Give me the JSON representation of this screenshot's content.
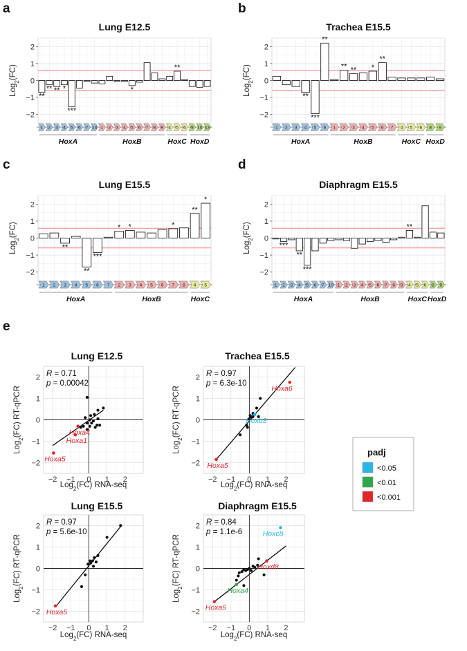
{
  "colors": {
    "HoxA": "#9ec1e0",
    "HoxB": "#f0b0b0",
    "HoxC": "#e8eb9c",
    "HoxD": "#b4d878",
    "p005": "#29b6e6",
    "p001": "#2fa84a",
    "p0001": "#e1262b",
    "threshold": "#f08080"
  },
  "bar_panels": [
    {
      "letter": "a",
      "title": "Lung E12.5",
      "ylabel": "Log2(FC)",
      "chart_data": {
        "type": "bar",
        "ylim": [
          -2.5,
          2.5
        ],
        "yticks": [
          -2,
          -1,
          0,
          1,
          2
        ],
        "threshold": 0.58,
        "categories": [
          "1",
          "2",
          "3",
          "4",
          "5",
          "6",
          "7",
          "13",
          "1",
          "2",
          "3",
          "4",
          "5",
          "6",
          "7",
          "8",
          "9",
          "4",
          "5",
          "6",
          "9",
          "10",
          "13"
        ],
        "families": [
          "HoxA",
          "HoxA",
          "HoxA",
          "HoxA",
          "HoxA",
          "HoxA",
          "HoxA",
          "HoxA",
          "HoxB",
          "HoxB",
          "HoxB",
          "HoxB",
          "HoxB",
          "HoxB",
          "HoxB",
          "HoxB",
          "HoxB",
          "HoxC",
          "HoxC",
          "HoxC",
          "HoxD",
          "HoxD",
          "HoxD"
        ],
        "values": [
          -0.7,
          -0.25,
          -0.35,
          -0.25,
          -1.55,
          -0.45,
          -0.05,
          -0.15,
          -0.2,
          0.25,
          -0.05,
          -0.05,
          -0.3,
          -0.1,
          1.05,
          0.45,
          0.1,
          0.25,
          0.55,
          0.05,
          -0.35,
          -0.4,
          -0.35
        ],
        "stars": [
          "**",
          "**",
          "**",
          "*",
          "***",
          "",
          "",
          "",
          "",
          "",
          "",
          "",
          "*",
          "",
          "",
          "",
          "",
          "",
          "**",
          "",
          "",
          "",
          ""
        ],
        "groups": [
          "HoxA",
          "HoxB",
          "HoxC",
          "HoxD"
        ]
      }
    },
    {
      "letter": "b",
      "title": "Trachea E15.5",
      "ylabel": "Log2(FC)",
      "chart_data": {
        "type": "bar",
        "ylim": [
          -2.5,
          2.5
        ],
        "yticks": [
          -2,
          -1,
          0,
          1,
          2
        ],
        "threshold": 0.58,
        "categories": [
          "1",
          "2",
          "3",
          "4",
          "5",
          "6",
          "1",
          "2",
          "3",
          "4",
          "5",
          "6",
          "7",
          "4",
          "5",
          "6",
          "8",
          "9"
        ],
        "families": [
          "HoxA",
          "HoxA",
          "HoxA",
          "HoxA",
          "HoxA",
          "HoxA",
          "HoxB",
          "HoxB",
          "HoxB",
          "HoxB",
          "HoxB",
          "HoxB",
          "HoxB",
          "HoxC",
          "HoxC",
          "HoxC",
          "HoxD",
          "HoxD"
        ],
        "values": [
          0.25,
          -0.25,
          -0.35,
          -0.7,
          -1.95,
          2.2,
          0.05,
          0.6,
          0.4,
          0.45,
          0.55,
          1.05,
          0.2,
          0.15,
          0.15,
          0.15,
          0.2,
          0.1
        ],
        "stars": [
          "",
          "",
          "",
          "**",
          "***",
          "**",
          "",
          "**",
          "**",
          "",
          "*",
          "**",
          "",
          "",
          "",
          "",
          "",
          ""
        ],
        "groups": [
          "HoxA",
          "HoxB",
          "HoxC",
          "HoxD"
        ]
      }
    },
    {
      "letter": "c",
      "title": "Lung E15.5",
      "ylabel": "Log2(FC)",
      "chart_data": {
        "type": "bar",
        "ylim": [
          -2.5,
          2.5
        ],
        "yticks": [
          -2,
          -1,
          0,
          1,
          2
        ],
        "threshold": 0.58,
        "categories": [
          "1",
          "2",
          "3",
          "4",
          "5",
          "6",
          "7",
          "2",
          "3",
          "4",
          "5",
          "6",
          "7",
          "8",
          "4",
          "5"
        ],
        "families": [
          "HoxA",
          "HoxA",
          "HoxA",
          "HoxA",
          "HoxA",
          "HoxA",
          "HoxA",
          "HoxB",
          "HoxB",
          "HoxB",
          "HoxB",
          "HoxB",
          "HoxB",
          "HoxB",
          "HoxC",
          "HoxC"
        ],
        "values": [
          0.25,
          0.3,
          -0.3,
          0.1,
          -1.7,
          -0.85,
          0.05,
          0.4,
          0.45,
          0.35,
          0.3,
          0.5,
          0.55,
          0.6,
          1.45,
          2.05
        ],
        "stars": [
          "",
          "",
          "**",
          "",
          "**",
          "***",
          "",
          "*",
          "*",
          "",
          "",
          "",
          "*",
          "",
          "**",
          "*"
        ],
        "groups": [
          "HoxA",
          "HoxB",
          "HoxC"
        ]
      }
    },
    {
      "letter": "d",
      "title": "Diaphragm E15.5",
      "ylabel": "Log2(FC)",
      "chart_data": {
        "type": "bar",
        "ylim": [
          -2.5,
          2.5
        ],
        "yticks": [
          -2,
          -1,
          0,
          1,
          2
        ],
        "threshold": 0.58,
        "categories": [
          "1",
          "2",
          "3",
          "4",
          "5",
          "6",
          "7",
          "10",
          "1",
          "2",
          "3",
          "4",
          "5",
          "6",
          "7",
          "8",
          "9",
          "4",
          "5",
          "6",
          "8",
          "9"
        ],
        "families": [
          "HoxA",
          "HoxA",
          "HoxA",
          "HoxA",
          "HoxA",
          "HoxA",
          "HoxA",
          "HoxA",
          "HoxB",
          "HoxB",
          "HoxB",
          "HoxB",
          "HoxB",
          "HoxB",
          "HoxB",
          "HoxB",
          "HoxB",
          "HoxC",
          "HoxC",
          "HoxC",
          "HoxD",
          "HoxD"
        ],
        "values": [
          -0.05,
          -0.2,
          -0.1,
          -0.75,
          -1.6,
          -0.75,
          -0.3,
          -0.15,
          -0.1,
          -0.15,
          -0.6,
          -0.35,
          -0.2,
          -0.15,
          -0.25,
          -0.1,
          0.05,
          0.45,
          0.05,
          1.9,
          0.35,
          0.3
        ],
        "stars": [
          "",
          "***",
          "",
          "**",
          "***",
          "",
          "",
          "",
          "",
          "",
          "",
          "",
          "",
          "",
          "",
          "",
          "",
          "**",
          "",
          "",
          "",
          ""
        ],
        "groups": [
          "HoxA",
          "HoxB",
          "HoxC",
          "HoxD"
        ]
      }
    }
  ],
  "scatter_panels": [
    {
      "title": "Lung E12.5",
      "xlabel": "Log2(FC) RNA-seq",
      "ylabel": "Log2(FC) RT-qPCR",
      "r_text": "R = 0.71",
      "p_text": "p = 0.00042",
      "chart_data": {
        "type": "scatter",
        "xlim": [
          -2.5,
          3
        ],
        "ylim": [
          -2.5,
          2.5
        ],
        "xticks": [
          -2,
          -1,
          0,
          1,
          2
        ],
        "yticks": [
          -2,
          -1,
          0,
          1,
          2
        ],
        "line": [
          [
            -2.0,
            -1.2
          ],
          [
            0.8,
            0.45
          ]
        ],
        "points": [
          [
            -0.1,
            1.05
          ],
          [
            0.8,
            0.55
          ],
          [
            0.5,
            0.45
          ],
          [
            0.3,
            0.25
          ],
          [
            0.1,
            0.2
          ],
          [
            0.5,
            0.05
          ],
          [
            -0.2,
            0.1
          ],
          [
            0.05,
            0.0
          ],
          [
            0.25,
            -0.05
          ],
          [
            0.45,
            -0.25
          ],
          [
            -0.1,
            -0.15
          ],
          [
            0.15,
            -0.15
          ],
          [
            0.6,
            -0.25
          ],
          [
            -0.3,
            -0.3
          ],
          [
            0.05,
            -0.3
          ],
          [
            -0.45,
            -0.35
          ],
          [
            -0.1,
            -0.45
          ],
          [
            0.35,
            -0.35
          ]
        ],
        "labeled": [
          {
            "label": "Hoxa4",
            "x": -0.6,
            "y": -0.3,
            "sig": "p0001"
          },
          {
            "label": "Hoxa1",
            "x": -0.75,
            "y": -0.7,
            "sig": "p0001"
          },
          {
            "label": "Hoxa5",
            "x": -1.95,
            "y": -1.55,
            "sig": "p0001"
          }
        ]
      }
    },
    {
      "title": "Trachea E15.5",
      "xlabel": "Log2(FC) RNA-seq",
      "ylabel": "Log2(FC) RT-qPCR",
      "r_text": "R = 0.97",
      "p_text": "p = 6.3e-10",
      "chart_data": {
        "type": "scatter",
        "xlim": [
          -2.5,
          3
        ],
        "ylim": [
          -2.5,
          2.5
        ],
        "xticks": [
          -2,
          -1,
          0,
          1,
          2
        ],
        "yticks": [
          -2,
          -1,
          0,
          1,
          2
        ],
        "line": [
          [
            -1.8,
            -1.85
          ],
          [
            2.5,
            2.45
          ]
        ],
        "points": [
          [
            0.6,
            1.0
          ],
          [
            0.4,
            0.55
          ],
          [
            0.2,
            0.3
          ],
          [
            0.05,
            0.2
          ],
          [
            0.2,
            0.15
          ],
          [
            0.5,
            0.15
          ],
          [
            0.0,
            0.05
          ],
          [
            -0.15,
            -0.25
          ],
          [
            -0.1,
            -0.35
          ],
          [
            -0.5,
            -0.7
          ],
          [
            0.1,
            0.1
          ]
        ],
        "labeled": [
          {
            "label": "Hoxa6",
            "x": 2.2,
            "y": 1.75,
            "sig": "p0001"
          },
          {
            "label": "Hoxb3",
            "x": 0.3,
            "y": 0.25,
            "sig": "p005"
          },
          {
            "label": "Hoxa5",
            "x": -1.8,
            "y": -1.85,
            "sig": "p0001"
          }
        ]
      }
    },
    {
      "title": "Lung E15.5",
      "xlabel": "Log2(FC) RNA-seq",
      "ylabel": "Log2(FC) RT-qPCR",
      "r_text": "R = 0.97",
      "p_text": "p = 5.6e-10",
      "chart_data": {
        "type": "scatter",
        "xlim": [
          -2.5,
          3
        ],
        "ylim": [
          -2.5,
          2.5
        ],
        "xticks": [
          -2,
          -1,
          0,
          1,
          2
        ],
        "yticks": [
          -2,
          -1,
          0,
          1,
          2
        ],
        "line": [
          [
            -1.8,
            -1.75
          ],
          [
            1.8,
            2.0
          ]
        ],
        "points": [
          [
            1.75,
            2.0
          ],
          [
            1.0,
            1.45
          ],
          [
            0.5,
            0.6
          ],
          [
            0.3,
            0.5
          ],
          [
            0.2,
            0.35
          ],
          [
            0.05,
            0.35
          ],
          [
            0.4,
            0.3
          ],
          [
            -0.05,
            0.2
          ],
          [
            0.1,
            0.25
          ],
          [
            0.25,
            0.1
          ],
          [
            -0.2,
            -0.3
          ],
          [
            -0.4,
            -0.85
          ]
        ],
        "labeled": [
          {
            "label": "Hoxa5",
            "x": -1.85,
            "y": -1.75,
            "sig": "p0001"
          }
        ]
      }
    },
    {
      "title": "Diaphragm E15.5",
      "xlabel": "Log2(FC) RNA-seq",
      "ylabel": "Log2(FC) RT-qPCR",
      "r_text": "R = 0.84",
      "p_text": "p = 1.1e-6",
      "chart_data": {
        "type": "scatter",
        "xlim": [
          -2.5,
          3
        ],
        "ylim": [
          -2.5,
          2.5
        ],
        "xticks": [
          -2,
          -1,
          0,
          1,
          2
        ],
        "yticks": [
          -2,
          -1,
          0,
          1,
          2
        ],
        "line": [
          [
            -1.9,
            -1.55
          ],
          [
            2.0,
            1.05
          ]
        ],
        "points": [
          [
            0.5,
            0.45
          ],
          [
            0.3,
            0.05
          ],
          [
            0.0,
            0.0
          ],
          [
            -0.1,
            -0.05
          ],
          [
            -0.2,
            -0.1
          ],
          [
            -0.3,
            -0.05
          ],
          [
            -0.4,
            -0.15
          ],
          [
            -0.55,
            -0.2
          ],
          [
            -0.6,
            -0.35
          ],
          [
            -0.7,
            -0.55
          ],
          [
            0.1,
            -0.1
          ],
          [
            0.8,
            -0.3
          ],
          [
            -0.3,
            -0.8
          ],
          [
            0.2,
            0.1
          ],
          [
            0.45,
            0.15
          ]
        ],
        "labeled": [
          {
            "label": "Hoxc8",
            "x": 1.7,
            "y": 1.9,
            "sig": "p005"
          },
          {
            "label": "Hoxd8",
            "x": 0.95,
            "y": 0.35,
            "sig": "p0001"
          },
          {
            "label": "Hoxa4",
            "x": -0.7,
            "y": -0.75,
            "sig": "p001"
          },
          {
            "label": "Hoxa5",
            "x": -1.9,
            "y": -1.55,
            "sig": "p0001"
          }
        ]
      }
    }
  ],
  "panel_e_letter": "e",
  "legend": {
    "title": "padj",
    "items": [
      {
        "label": "<0.05",
        "color": "#29b6e6"
      },
      {
        "label": "<0.01",
        "color": "#2fa84a"
      },
      {
        "label": "<0.001",
        "color": "#e1262b"
      }
    ]
  }
}
